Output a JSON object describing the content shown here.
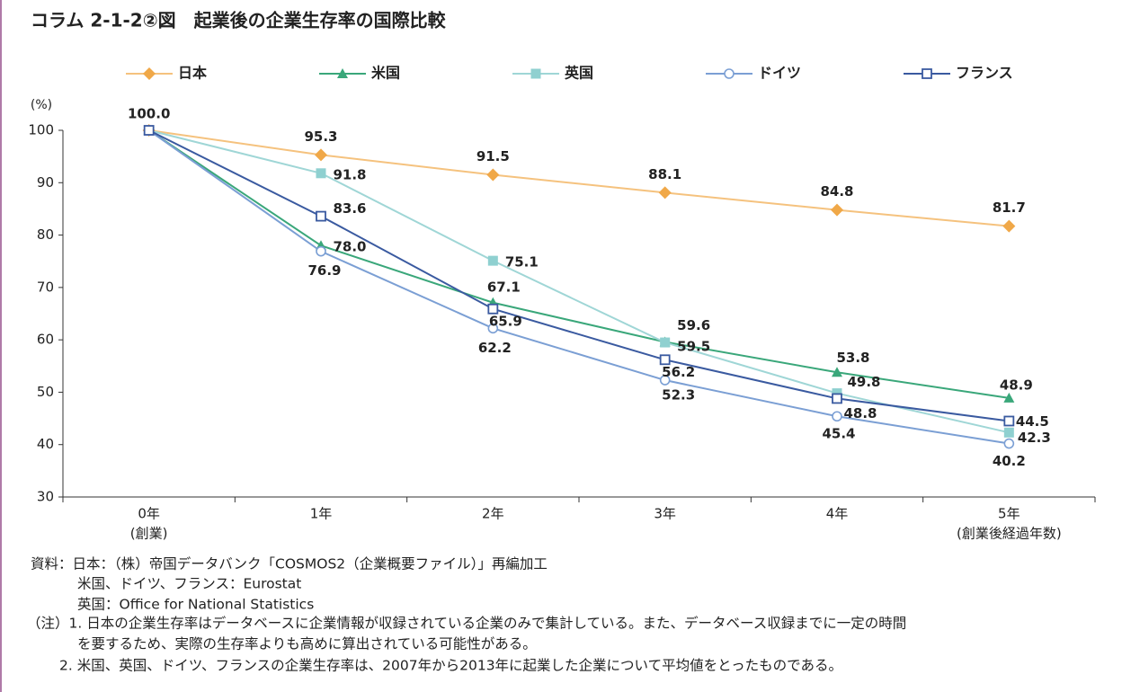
{
  "chart_data": {
    "type": "line",
    "title": "コラム 2-1-2②図　起業後の企業生存率の国際比較",
    "y_label": "(%)",
    "categories": [
      "0年",
      "1年",
      "2年",
      "3年",
      "4年",
      "5年"
    ],
    "category_notes": [
      "(創業)",
      null,
      null,
      null,
      null,
      "(創業後経過年数)"
    ],
    "ylim": [
      30,
      100
    ],
    "yticks": [
      30,
      40,
      50,
      60,
      70,
      80,
      90,
      100
    ],
    "legend": "top",
    "series": [
      {
        "name": "日本",
        "color": "#f0a848",
        "line_color": "#f5c27e",
        "marker": "diamond",
        "values": [
          100.0,
          95.3,
          91.5,
          88.1,
          84.8,
          81.7
        ],
        "value_labels": [
          "100.0",
          "95.3",
          "91.5",
          "88.1",
          "84.8",
          "81.7"
        ]
      },
      {
        "name": "米国",
        "color": "#3aa77a",
        "line_color": "#3aa77a",
        "marker": "triangle",
        "values": [
          100,
          78.0,
          67.1,
          59.6,
          53.8,
          48.9
        ],
        "value_labels": [
          null,
          "78.0",
          "67.1",
          "59.6",
          "53.8",
          "48.9"
        ]
      },
      {
        "name": "英国",
        "color": "#8fd0d0",
        "line_color": "#9fd6d6",
        "marker": "square",
        "values": [
          100,
          91.8,
          75.1,
          59.5,
          49.8,
          42.3
        ],
        "value_labels": [
          null,
          "91.8",
          "75.1",
          "59.5",
          "49.8",
          "42.3"
        ]
      },
      {
        "name": "ドイツ",
        "color": "#7b9fd4",
        "line_color": "#7b9fd4",
        "marker": "open-circle",
        "values": [
          100,
          76.9,
          62.2,
          52.3,
          45.4,
          40.2
        ],
        "value_labels": [
          null,
          "76.9",
          "62.2",
          "52.3",
          "45.4",
          "40.2"
        ]
      },
      {
        "name": "フランス",
        "color": "#3a5aa0",
        "line_color": "#3a5aa0",
        "marker": "open-square",
        "values": [
          100,
          83.6,
          65.9,
          56.2,
          48.8,
          44.5
        ],
        "value_labels": [
          null,
          "83.6",
          "65.9",
          "56.2",
          "48.8",
          "44.5"
        ]
      }
    ],
    "notes": [
      "資料：日本：（株）帝国データバンク「COSMOS2（企業概要ファイル）」再編加工",
      "米国、ドイツ、フランス：Eurostat",
      "英国：Office for National Statistics",
      "（注）1. 日本の企業生存率はデータベースに企業情報が収録されている企業のみで集計している。また、データベース収録までに一定の時間",
      "を要するため、実際の生存率よりも高めに算出されている可能性がある。",
      "2. 米国、英国、ドイツ、フランスの企業生存率は、2007年から2013年に起業した企業について平均値をとったものである。"
    ]
  }
}
